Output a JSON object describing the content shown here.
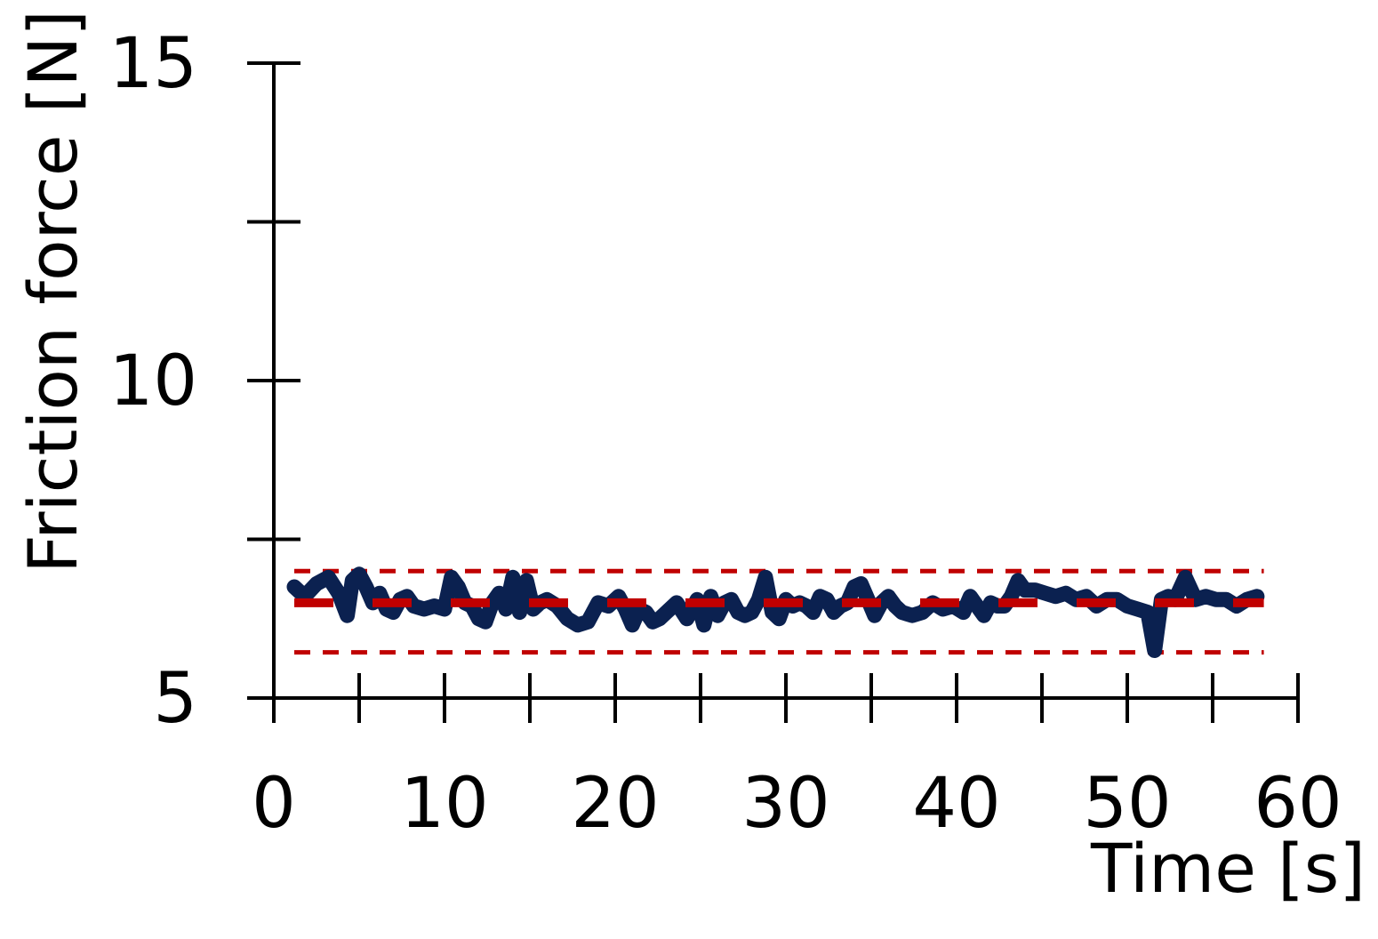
{
  "chart_data": {
    "type": "line",
    "xlabel": "Time [s]",
    "ylabel": "Friction force [N]",
    "xlim": [
      0,
      60
    ],
    "ylim": [
      5,
      15
    ],
    "x_ticks": [
      0,
      10,
      20,
      30,
      40,
      50,
      60
    ],
    "x_minor_ticks": [
      5,
      15,
      25,
      35,
      45,
      55
    ],
    "y_ticks": [
      5,
      10,
      15
    ],
    "y_minor_ticks": [
      7.5,
      12.5
    ],
    "grid": false,
    "colors": {
      "series": "#0b2150",
      "mean": "#c00000",
      "bounds": "#c00000",
      "axis": "#000000"
    },
    "series": [
      {
        "role": "measured",
        "x": [
          1.2,
          1.8,
          2.5,
          3.2,
          3.8,
          4.3,
          4.6,
          5.0,
          5.4,
          5.8,
          6.2,
          6.6,
          7.0,
          7.4,
          7.8,
          8.2,
          8.8,
          9.4,
          10.0,
          10.4,
          10.8,
          11.2,
          11.6,
          12.0,
          12.4,
          12.8,
          13.2,
          13.6,
          14.0,
          14.4,
          14.8,
          15.2,
          15.6,
          16.0,
          16.6,
          17.2,
          17.8,
          18.4,
          19.0,
          19.6,
          20.2,
          20.6,
          21.0,
          21.4,
          21.8,
          22.2,
          22.6,
          23.0,
          23.6,
          24.2,
          24.8,
          25.2,
          25.6,
          26.0,
          26.4,
          26.8,
          27.2,
          27.6,
          28.0,
          28.4,
          28.8,
          29.2,
          29.6,
          30.0,
          30.4,
          30.8,
          31.2,
          31.6,
          32.0,
          32.4,
          32.8,
          33.2,
          33.6,
          34.0,
          34.4,
          34.8,
          35.2,
          35.6,
          36.0,
          36.4,
          36.8,
          37.4,
          38.0,
          38.6,
          39.2,
          39.8,
          40.4,
          40.8,
          41.2,
          41.6,
          42.0,
          42.4,
          42.8,
          43.2,
          43.6,
          44.0,
          44.6,
          45.2,
          45.8,
          46.4,
          47.0,
          47.6,
          48.2,
          48.8,
          49.4,
          50.0,
          50.6,
          51.2,
          51.6,
          52.0,
          52.4,
          52.8,
          53.4,
          54.0,
          54.6,
          55.2,
          55.8,
          56.4,
          57.0,
          57.6
        ],
        "y": [
          6.75,
          6.6,
          6.8,
          6.9,
          6.65,
          6.3,
          6.85,
          6.95,
          6.75,
          6.5,
          6.65,
          6.4,
          6.35,
          6.55,
          6.6,
          6.45,
          6.4,
          6.45,
          6.4,
          6.9,
          6.75,
          6.5,
          6.45,
          6.25,
          6.2,
          6.5,
          6.65,
          6.4,
          6.9,
          6.35,
          6.85,
          6.4,
          6.5,
          6.55,
          6.45,
          6.25,
          6.15,
          6.2,
          6.5,
          6.45,
          6.6,
          6.4,
          6.15,
          6.4,
          6.35,
          6.2,
          6.25,
          6.35,
          6.5,
          6.25,
          6.55,
          6.15,
          6.6,
          6.3,
          6.5,
          6.55,
          6.35,
          6.3,
          6.35,
          6.55,
          6.9,
          6.35,
          6.25,
          6.55,
          6.45,
          6.5,
          6.45,
          6.35,
          6.6,
          6.55,
          6.35,
          6.45,
          6.5,
          6.75,
          6.8,
          6.55,
          6.3,
          6.5,
          6.6,
          6.45,
          6.35,
          6.3,
          6.35,
          6.5,
          6.4,
          6.45,
          6.35,
          6.6,
          6.45,
          6.3,
          6.5,
          6.45,
          6.45,
          6.6,
          6.85,
          6.7,
          6.7,
          6.65,
          6.6,
          6.65,
          6.55,
          6.6,
          6.45,
          6.55,
          6.55,
          6.45,
          6.4,
          6.35,
          5.75,
          6.55,
          6.6,
          6.55,
          6.9,
          6.55,
          6.6,
          6.55,
          6.55,
          6.45,
          6.55,
          6.6
        ]
      },
      {
        "role": "mean",
        "x": [
          1.2,
          58.0
        ],
        "y": [
          6.5,
          6.5
        ]
      },
      {
        "role": "upper-bound",
        "x": [
          1.2,
          58.0
        ],
        "y": [
          7.0,
          7.0
        ]
      },
      {
        "role": "lower-bound",
        "x": [
          1.2,
          58.0
        ],
        "y": [
          5.72,
          5.72
        ]
      }
    ]
  }
}
